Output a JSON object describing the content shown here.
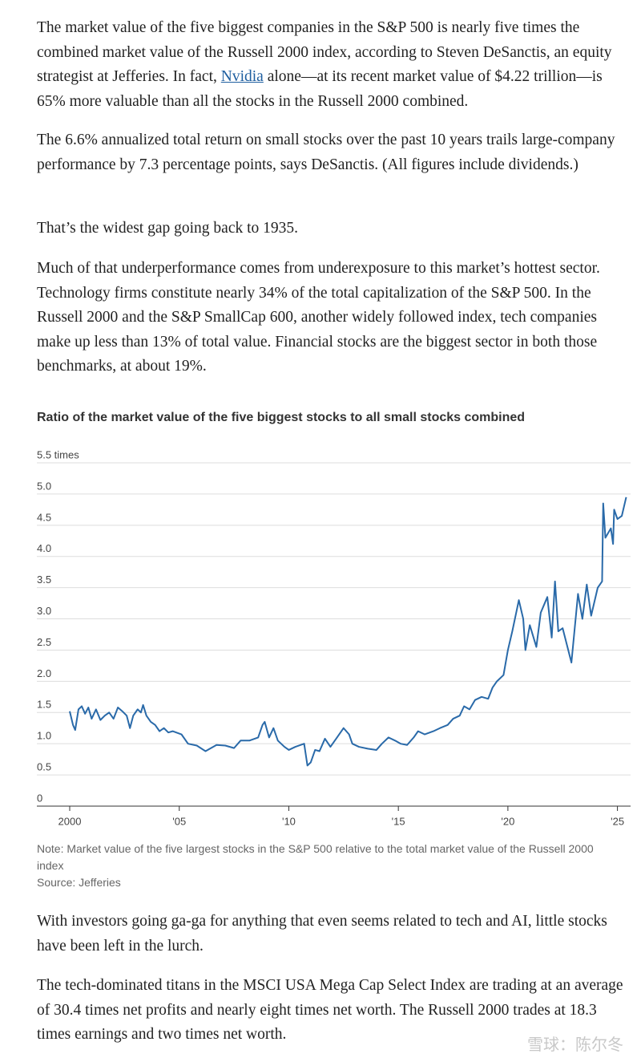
{
  "paragraphs": [
    {
      "before": "The market value of the five biggest companies in the S&P 500 is nearly five times the combined market value of the Russell 2000 index, according to Steven DeSanctis, an equity strategist at Jefferies. In fact, ",
      "link": "Nvidia",
      "after": " alone—at its recent market value of $4.22 trillion—is 65% more valuable than all the stocks in the Russell 2000 combined."
    },
    "The 6.6% annualized total return on small stocks over the past 10 years trails large-company performance by 7.3 percentage points, says DeSanctis. (All figures include dividends.)",
    "That’s the widest gap going back to 1935.",
    "Much of that underperformance comes from underexposure to this market’s hottest sector. Technology firms constitute nearly 34% of the total capitalization of the S&P 500. In the Russell 2000 and the S&P SmallCap 600, another widely followed index, tech companies make up less than 13% of total value. Financial stocks are the biggest sector in both those benchmarks, at about 19%."
  ],
  "chart_data": {
    "type": "line",
    "title": "Ratio of the market value of the five biggest stocks to all small stocks combined",
    "note": "Note: Market value of the five largest stocks in the S&P 500 relative to the total market value of the Russell 2000 index",
    "source": "Source: Jefferies",
    "xlim": [
      1998.5,
      2025.6
    ],
    "xticks": [
      {
        "value": 2000,
        "label": "2000"
      },
      {
        "value": 2005,
        "label": "'05"
      },
      {
        "value": 2010,
        "label": "'10"
      },
      {
        "value": 2015,
        "label": "'15"
      },
      {
        "value": 2020,
        "label": "'20"
      },
      {
        "value": 2025,
        "label": "'25"
      }
    ],
    "ylim": [
      0,
      5.5
    ],
    "yticks": [
      0,
      0.5,
      {
        "value": 1,
        "label": "1.0"
      },
      1.5,
      {
        "value": 2,
        "label": "2.0"
      },
      2.5,
      {
        "value": 3,
        "label": "3.0"
      },
      3.5,
      {
        "value": 4,
        "label": "4.0"
      },
      4.5,
      {
        "value": 5,
        "label": "5.0"
      },
      {
        "value": 5.5,
        "label": "5.5 times"
      }
    ],
    "grid": true,
    "series": [
      {
        "color": "#2a6aa9",
        "x": [
          2000.0,
          2000.15,
          2000.25,
          2000.4,
          2000.55,
          2000.7,
          2000.85,
          2001.0,
          2001.2,
          2001.4,
          2001.6,
          2001.8,
          2002.0,
          2002.2,
          2002.4,
          2002.6,
          2002.75,
          2002.9,
          2003.1,
          2003.25,
          2003.35,
          2003.5,
          2003.7,
          2003.9,
          2004.1,
          2004.3,
          2004.5,
          2004.7,
          2005.1,
          2005.4,
          2005.8,
          2006.2,
          2006.4,
          2006.7,
          2007.1,
          2007.5,
          2007.8,
          2008.2,
          2008.6,
          2008.8,
          2008.9,
          2009.1,
          2009.3,
          2009.5,
          2009.8,
          2010.0,
          2010.3,
          2010.7,
          2010.85,
          2011.0,
          2011.2,
          2011.4,
          2011.65,
          2011.9,
          2012.2,
          2012.5,
          2012.75,
          2012.9,
          2013.2,
          2013.6,
          2014.0,
          2014.25,
          2014.55,
          2014.85,
          2015.1,
          2015.4,
          2015.7,
          2015.9,
          2016.2,
          2016.6,
          2016.9,
          2017.25,
          2017.5,
          2017.8,
          2018.0,
          2018.25,
          2018.5,
          2018.8,
          2019.1,
          2019.3,
          2019.5,
          2019.8,
          2020.0,
          2020.2,
          2020.5,
          2020.7,
          2020.8,
          2021.0,
          2021.3,
          2021.5,
          2021.8,
          2022.0,
          2022.15,
          2022.3,
          2022.5,
          2022.9,
          2023.2,
          2023.4,
          2023.6,
          2023.8,
          2024.1,
          2024.3,
          2024.35,
          2024.45,
          2024.7,
          2024.8,
          2024.85,
          2025.0,
          2025.2,
          2025.4
        ],
        "values": [
          1.52,
          1.3,
          1.22,
          1.55,
          1.6,
          1.48,
          1.58,
          1.4,
          1.55,
          1.38,
          1.45,
          1.5,
          1.4,
          1.58,
          1.52,
          1.45,
          1.25,
          1.45,
          1.55,
          1.5,
          1.62,
          1.45,
          1.35,
          1.3,
          1.2,
          1.25,
          1.18,
          1.2,
          1.15,
          1.0,
          0.97,
          0.88,
          0.92,
          0.98,
          0.97,
          0.93,
          1.05,
          1.05,
          1.1,
          1.3,
          1.35,
          1.1,
          1.25,
          1.05,
          0.95,
          0.9,
          0.95,
          1.0,
          0.65,
          0.7,
          0.9,
          0.88,
          1.08,
          0.95,
          1.1,
          1.25,
          1.15,
          1.0,
          0.95,
          0.92,
          0.9,
          1.0,
          1.1,
          1.05,
          1.0,
          0.98,
          1.1,
          1.2,
          1.15,
          1.2,
          1.25,
          1.3,
          1.4,
          1.45,
          1.6,
          1.55,
          1.7,
          1.75,
          1.72,
          1.9,
          2.0,
          2.1,
          2.5,
          2.8,
          3.3,
          3.0,
          2.5,
          2.9,
          2.55,
          3.1,
          3.35,
          2.7,
          3.6,
          2.8,
          2.85,
          2.3,
          3.4,
          3.0,
          3.55,
          3.05,
          3.5,
          3.6,
          4.85,
          4.3,
          4.45,
          4.2,
          4.75,
          4.6,
          4.65,
          4.95
        ]
      }
    ]
  },
  "after_paragraphs": [
    "With investors going ga-ga for anything that even seems related to tech and AI, little stocks have been left in the lurch.",
    "The tech-dominated titans in the MSCI USA Mega Cap Select Index are trading at an average of 30.4 times net profits and nearly eight times net worth. The Russell 2000 trades at 18.3 times earnings and two times net worth."
  ],
  "watermark": "雪球：陈尔冬"
}
